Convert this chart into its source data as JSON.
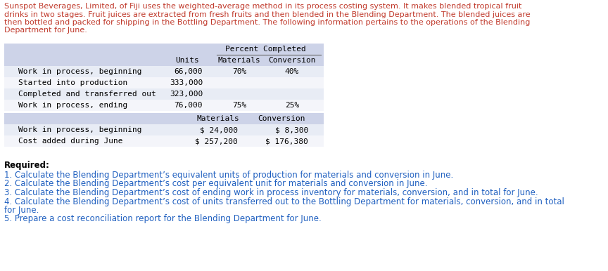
{
  "intro_lines": [
    "Sunspot Beverages, Limited, of Fiji uses the weighted-average method in its process costing system. It makes blended tropical fruit",
    "drinks in two stages. Fruit juices are extracted from fresh fruits and then blended in the Blending Department. The blended juices are",
    "then bottled and packed for shipping in the Bottling Department. The following information pertains to the operations of the Blending",
    "Department for June."
  ],
  "table1_rows": [
    [
      "Work in process, beginning",
      "66,000",
      "70%",
      "40%"
    ],
    [
      "Started into production",
      "333,000",
      "",
      ""
    ],
    [
      "Completed and transferred out",
      "323,000",
      "",
      ""
    ],
    [
      "Work in process, ending",
      "76,000",
      "75%",
      "25%"
    ]
  ],
  "table2_rows": [
    [
      "Work in process, beginning",
      "$ 24,000",
      "$ 8,300"
    ],
    [
      "Cost added during June",
      "$ 257,200",
      "$ 176,380"
    ]
  ],
  "required_label": "Required:",
  "required_items": [
    "1. Calculate the Blending Department’s equivalent units of production for materials and conversion in June.",
    "2. Calculate the Blending Department’s cost per equivalent unit for materials and conversion in June.",
    "3. Calculate the Blending Department’s cost of ending work in process inventory for materials, conversion, and in total for June.",
    "4. Calculate the Blending Department’s cost of units transferred out to the Bottling Department for materials, conversion, and in total",
    "for June.",
    "5. Prepare a cost reconciliation report for the Blending Department for June."
  ],
  "intro_color": "#c0392b",
  "req_color": "#2060c0",
  "tbl_text": "#000000",
  "hdr_bg": "#cdd3e8",
  "odd_bg": "#e8ecf5",
  "even_bg": "#f4f5fa",
  "req_text_color": "#2060c0"
}
